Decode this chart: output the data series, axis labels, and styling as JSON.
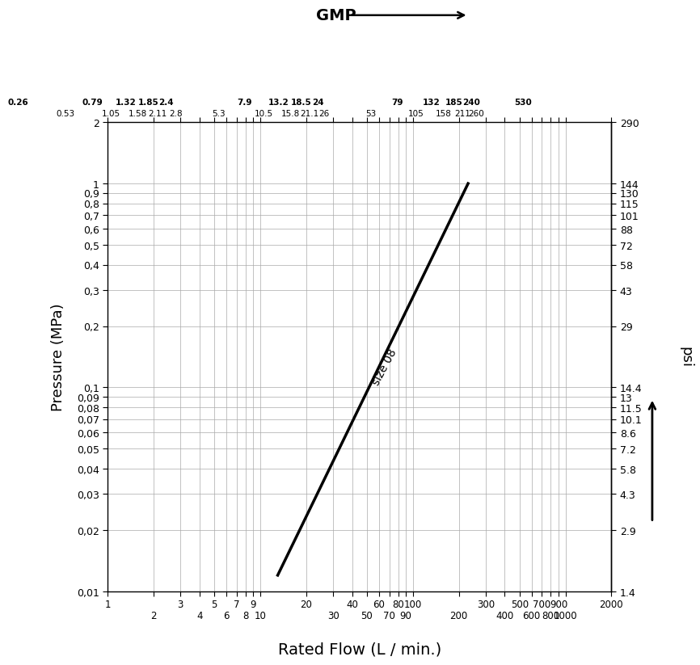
{
  "title_top": "GMP",
  "xlabel": "Rated Flow (L / min.)",
  "ylabel_left": "Pressure (MPa)",
  "ylabel_right": "psi",
  "x_min": 1,
  "x_max": 2000,
  "y_min": 0.01,
  "y_max": 2,
  "y_left_ticks": [
    0.01,
    0.02,
    0.03,
    0.04,
    0.05,
    0.06,
    0.07,
    0.08,
    0.09,
    0.1,
    0.2,
    0.3,
    0.4,
    0.5,
    0.6,
    0.7,
    0.8,
    0.9,
    1,
    2
  ],
  "y_left_labels": [
    "0,01",
    "0,02",
    "0,03",
    "0,04",
    "0,05",
    "0,06",
    "0,07",
    "0,08",
    "0,09",
    "0,1",
    "0,2",
    "0,3",
    "0,4",
    "0,5",
    "0,6",
    "0,7",
    "0,8",
    "0,9",
    "1",
    "2"
  ],
  "y_right_labels": [
    "1.4",
    "2.9",
    "4.3",
    "5.8",
    "7.2",
    "8.6",
    "10.1",
    "11.5",
    "13",
    "14.4",
    "29",
    "43",
    "58",
    "72",
    "88",
    "101",
    "115",
    "130",
    "144",
    "290"
  ],
  "line_x": [
    13,
    230
  ],
  "line_y": [
    0.012,
    1.0
  ],
  "line_label": "size 08",
  "line_color": "#000000",
  "line_width": 2.5,
  "background_color": "#ffffff",
  "grid_color": "#aaaaaa",
  "x_grid": [
    1,
    2,
    3,
    4,
    5,
    6,
    7,
    8,
    9,
    10,
    20,
    30,
    40,
    50,
    60,
    70,
    80,
    90,
    100,
    200,
    300,
    400,
    500,
    600,
    700,
    800,
    900,
    1000,
    2000
  ],
  "y_grid": [
    0.01,
    0.02,
    0.03,
    0.04,
    0.05,
    0.06,
    0.07,
    0.08,
    0.09,
    0.1,
    0.2,
    0.3,
    0.4,
    0.5,
    0.6,
    0.7,
    0.8,
    0.9,
    1,
    2
  ],
  "x_bottom_row1": [
    1,
    3,
    5,
    7,
    9,
    20,
    40,
    60,
    80,
    100,
    300,
    500,
    700,
    900,
    2000
  ],
  "x_bottom_row1_labels": [
    "1",
    "3",
    "5",
    "7",
    "9",
    "20",
    "40",
    "60",
    "80",
    "100",
    "300",
    "500",
    "700",
    "900",
    "2000"
  ],
  "x_bottom_row2": [
    2,
    4,
    6,
    8,
    10,
    30,
    50,
    70,
    90,
    200,
    400,
    600,
    800,
    1000
  ],
  "x_bottom_row2_labels": [
    "2",
    "4",
    "6",
    "8",
    "10",
    "30",
    "50",
    "70",
    "90",
    "200",
    "400",
    "600",
    "800",
    "1000"
  ],
  "x_top_row1": [
    0.26,
    0.79,
    1.32,
    1.85,
    2.4,
    7.9,
    13.2,
    18.5,
    24,
    79,
    132,
    185,
    240,
    530
  ],
  "x_top_row1_labels": [
    "0.26",
    "0.79",
    "1.32",
    "1.85",
    "2.4",
    "7.9",
    "13.2",
    "18.5",
    "24",
    "79",
    "132",
    "185",
    "240",
    "530"
  ],
  "x_top_row2": [
    0.53,
    1.05,
    1.58,
    2.11,
    2.8,
    5.3,
    10.5,
    15.8,
    21.1,
    26,
    53,
    105,
    158,
    211,
    260
  ],
  "x_top_row2_labels": [
    "0.53",
    "1.05",
    "1.58",
    "2.11",
    "2.8",
    "5.3",
    "10.5",
    "15.8",
    "21.1",
    "26",
    "53",
    "105",
    "158",
    "211",
    "260"
  ]
}
